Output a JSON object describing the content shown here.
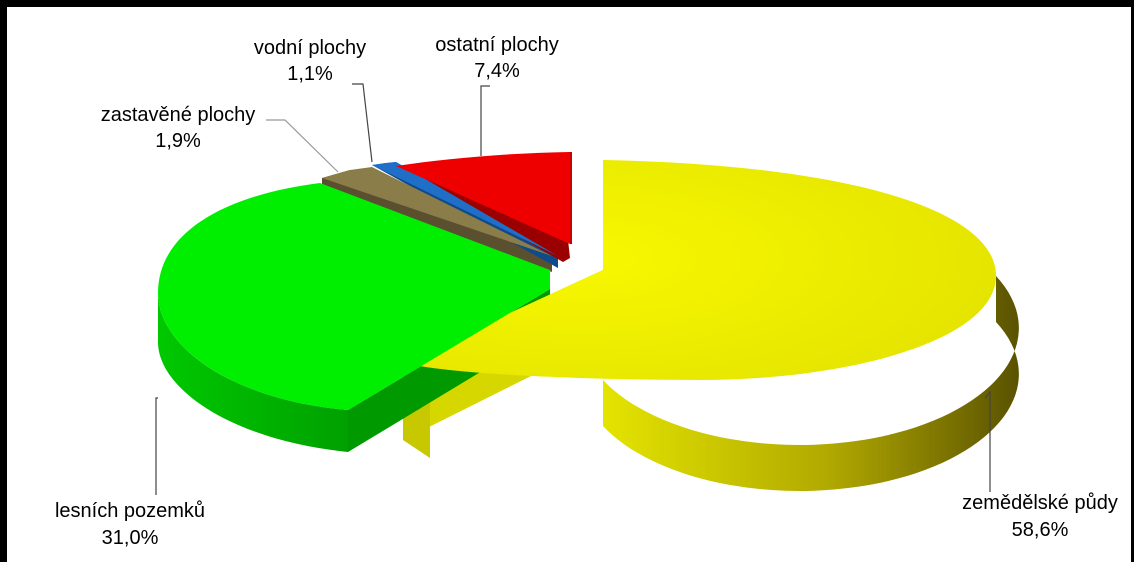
{
  "chart_data": {
    "type": "pie",
    "title": "",
    "categories": [
      "zemědělské půdy",
      "lesních pozemků",
      "zastavěné plochy",
      "vodní plochy",
      "ostatní plochy"
    ],
    "values": [
      58.6,
      31.0,
      1.9,
      1.1,
      7.4
    ],
    "value_labels": [
      "58,6%",
      "31,0%",
      "1,9%",
      "1,1%",
      "7,4%"
    ],
    "colors": [
      "#eeee00",
      "#00ee00",
      "#8b7d4a",
      "#1f6fc8",
      "#ee0000"
    ],
    "style": "3d-exploded",
    "legend": "none"
  }
}
